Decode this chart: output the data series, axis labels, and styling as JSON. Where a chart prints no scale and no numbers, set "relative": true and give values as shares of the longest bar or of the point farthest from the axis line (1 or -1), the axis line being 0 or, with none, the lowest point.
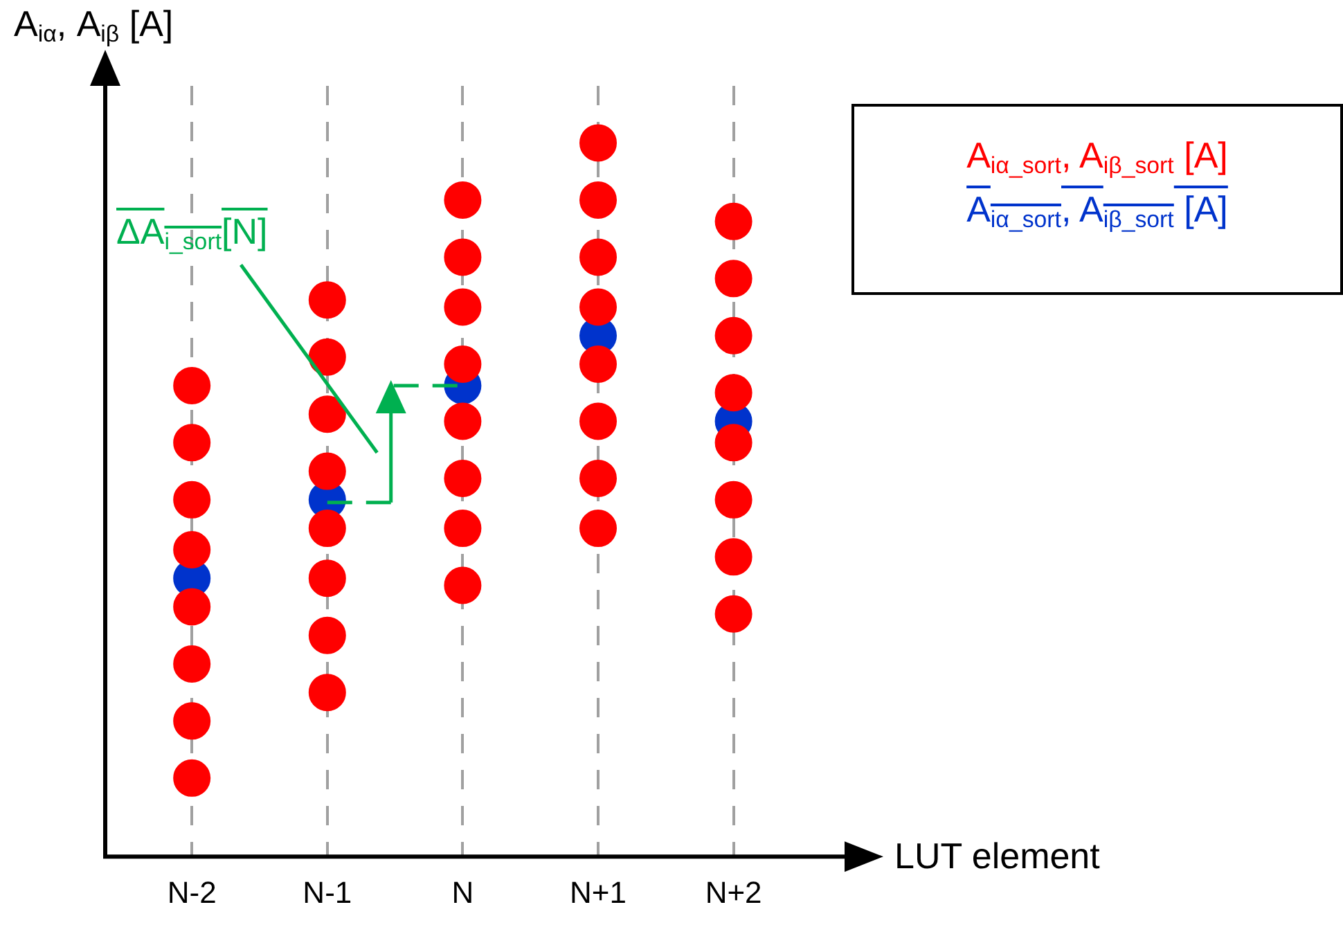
{
  "chart_data": {
    "type": "scatter",
    "relative": true,
    "ylabel": "A$_{iα}$, A$_{iβ}$ [A]",
    "xlabel": "LUT element",
    "categories": [
      "N-2",
      "N-1",
      "N",
      "N+1",
      "N+2"
    ],
    "series": [
      {
        "name": "A$_{iα_sort}$, A$_{iβ_sort}$ [A]",
        "color": "#ff0000",
        "x": [
          "N-2",
          "N-2",
          "N-2",
          "N-2",
          "N-2",
          "N-2",
          "N-2",
          "N-2",
          "N-1",
          "N-1",
          "N-1",
          "N-1",
          "N-1",
          "N-1",
          "N-1",
          "N-1",
          "N",
          "N",
          "N",
          "N",
          "N",
          "N",
          "N",
          "N",
          "N+1",
          "N+1",
          "N+1",
          "N+1",
          "N+1",
          "N+1",
          "N+1",
          "N+1",
          "N+2",
          "N+2",
          "N+2",
          "N+2",
          "N+2",
          "N+2",
          "N+2",
          "N+2"
        ],
        "values": [
          0.66,
          0.58,
          0.5,
          0.43,
          0.35,
          0.27,
          0.19,
          0.11,
          0.78,
          0.7,
          0.62,
          0.54,
          0.46,
          0.39,
          0.31,
          0.23,
          0.92,
          0.84,
          0.77,
          0.69,
          0.61,
          0.53,
          0.46,
          0.38,
          1,
          0.92,
          0.84,
          0.77,
          0.69,
          0.61,
          0.53,
          0.46,
          0.89,
          0.81,
          0.73,
          0.65,
          0.58,
          0.5,
          0.42,
          0.34
        ]
      },
      {
        "name": "A$_{iα_sort}$, A$_{iβ_sort}$ [A]",
        "color": "#0033cc",
        "x": [
          "N-2",
          "N-1",
          "N",
          "N+1",
          "N+2"
        ],
        "values": [
          0.39,
          0.5,
          0.66,
          0.73,
          0.61
        ]
      }
    ],
    "annotations": [
      "ΔA$_{i_sort}$[N]"
    ],
    "grid": "x",
    "line_style": "dashed",
    "marker": "circle",
    "legend": "top right"
  }
}
